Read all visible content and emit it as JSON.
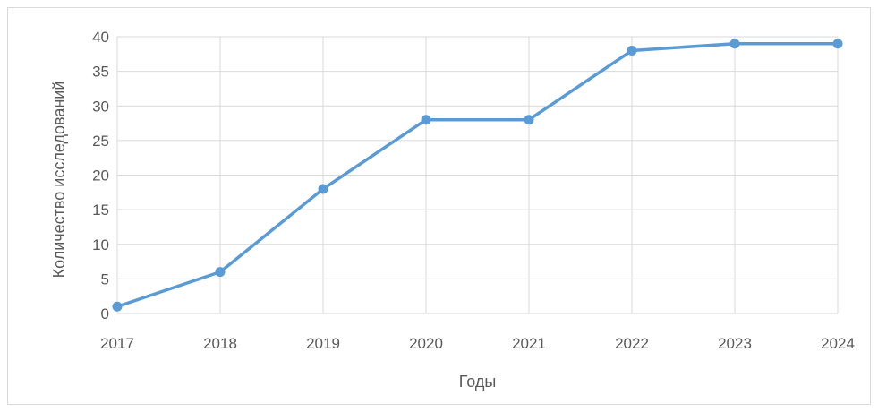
{
  "chart_data": {
    "type": "line",
    "x": [
      2017,
      2018,
      2019,
      2020,
      2021,
      2022,
      2023,
      2024
    ],
    "xticks": [
      "2017",
      "2018",
      "2019",
      "2020",
      "2021",
      "2022",
      "2023",
      "2024"
    ],
    "series": [
      {
        "values": [
          1,
          6,
          18,
          28,
          28,
          38,
          39,
          39
        ],
        "color": "#5b9bd5"
      }
    ],
    "xlabel": "Годы",
    "ylabel": "Количество исследований",
    "ylim": [
      0,
      40
    ],
    "yticks": [
      0,
      5,
      10,
      15,
      20,
      25,
      30,
      35,
      40
    ],
    "grid": true,
    "markers": "circle"
  }
}
